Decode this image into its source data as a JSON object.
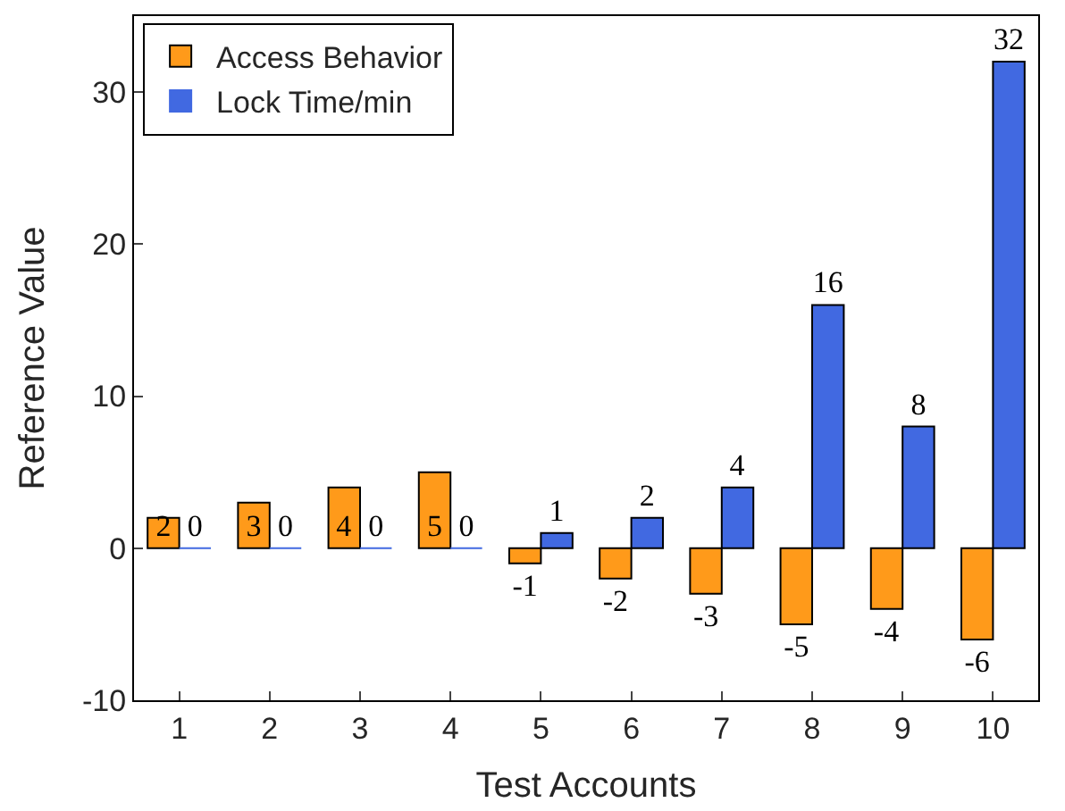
{
  "chart_data": {
    "type": "bar",
    "xlabel": "Test Accounts",
    "ylabel": "Reference Value",
    "categories": [
      "1",
      "2",
      "3",
      "4",
      "5",
      "6",
      "7",
      "8",
      "9",
      "10"
    ],
    "series": [
      {
        "name": "Access Behavior",
        "color": "#ff9a1a",
        "values": [
          2,
          3,
          4,
          5,
          -1,
          -2,
          -3,
          -5,
          -4,
          -6
        ]
      },
      {
        "name": "Lock Time/min",
        "color": "#4169e1",
        "values": [
          0,
          0,
          0,
          0,
          1,
          2,
          4,
          16,
          8,
          32
        ]
      }
    ],
    "ylim": [
      -10,
      35
    ],
    "yticks": [
      -10,
      0,
      10,
      20,
      30
    ],
    "data_labels": true,
    "legend": "top left"
  }
}
